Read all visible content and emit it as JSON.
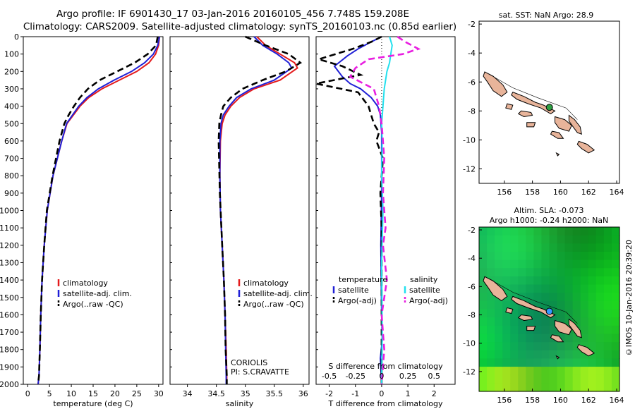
{
  "header": {
    "title_line1": "Argo profile: IF 6901430_17 03-Jan-2016 20160105_456 7.748S 159.208E",
    "title_line2": "Climatology: CARS2009. Satellite-adjusted climatology: synTS_20160103.nc (0.85d earlier)"
  },
  "watermark": "©IMOS 10-Jan-2016 20:39:20",
  "colors": {
    "climatology": "#e41a1c",
    "satellite": "#1f1fd6",
    "argo": "#000000",
    "sal_satellite": "#22e0ee",
    "sal_argo": "#e81ee0",
    "land": "#e8b49a"
  },
  "chart_data": [
    {
      "id": "temperature",
      "type": "line",
      "xlabel": "temperature (deg C)",
      "ylabel": "",
      "xlim": [
        -1,
        31
      ],
      "ylim": [
        2000,
        0
      ],
      "xticks": [
        0,
        5,
        10,
        15,
        20,
        25,
        30
      ],
      "yticks": [
        0,
        100,
        200,
        300,
        400,
        500,
        600,
        700,
        800,
        900,
        1000,
        1100,
        1200,
        1300,
        1400,
        1500,
        1600,
        1700,
        1800,
        1900,
        2000
      ],
      "legend": [
        "climatology",
        "satellite-adj. clim.",
        "Argo(..raw -QC)"
      ],
      "series": [
        {
          "name": "climatology",
          "color": "#e41a1c",
          "dash": false,
          "x": [
            30.2,
            30.0,
            29.3,
            27.8,
            25.0,
            21.0,
            17.0,
            14.0,
            12.0,
            10.5,
            9.0,
            7.8,
            6.8,
            5.8,
            4.5,
            3.8,
            3.3,
            3.0,
            2.8,
            2.6,
            2.4
          ],
          "y": [
            0,
            50,
            100,
            150,
            200,
            250,
            300,
            350,
            400,
            450,
            500,
            600,
            700,
            800,
            1000,
            1200,
            1400,
            1600,
            1800,
            1950,
            2000
          ]
        },
        {
          "name": "satellite-adj. clim.",
          "color": "#1f1fd6",
          "dash": false,
          "x": [
            30.2,
            29.8,
            28.8,
            26.8,
            23.8,
            19.8,
            16.2,
            13.6,
            11.7,
            10.3,
            8.9,
            7.8,
            6.8,
            5.8,
            4.5,
            3.8,
            3.3,
            3.0,
            2.8,
            2.6,
            2.4
          ],
          "y": [
            0,
            50,
            100,
            150,
            200,
            250,
            300,
            350,
            400,
            450,
            500,
            600,
            700,
            800,
            1000,
            1200,
            1400,
            1600,
            1800,
            1950,
            2000
          ]
        },
        {
          "name": "Argo(..raw -QC)",
          "color": "#000000",
          "dash": true,
          "x": [
            29.8,
            29.4,
            27.5,
            24.5,
            20.5,
            16.5,
            13.8,
            12.0,
            10.6,
            9.4,
            8.4,
            7.3,
            6.5,
            5.7,
            4.4,
            3.8,
            3.3,
            3.0,
            2.8,
            2.6,
            2.4
          ],
          "y": [
            0,
            50,
            100,
            150,
            200,
            250,
            300,
            350,
            400,
            450,
            500,
            600,
            700,
            800,
            1000,
            1200,
            1400,
            1600,
            1800,
            1950,
            2000
          ]
        }
      ]
    },
    {
      "id": "salinity",
      "type": "line",
      "xlabel": "salinity",
      "xlim": [
        33.7,
        36.1
      ],
      "ylim": [
        2000,
        0
      ],
      "xticks": [
        34,
        34.5,
        35,
        35.5,
        36
      ],
      "legend": [
        "climatology",
        "satellite-adj. clim.",
        "Argo(..raw -QC)"
      ],
      "annotation": [
        "CORIOLIS",
        "PI: S.CRAVATTE"
      ],
      "series": [
        {
          "name": "climatology",
          "color": "#e41a1c",
          "dash": false,
          "x": [
            35.2,
            35.35,
            35.6,
            35.85,
            35.9,
            35.6,
            35.15,
            34.9,
            34.75,
            34.65,
            34.6,
            34.57,
            34.56,
            34.57,
            34.6,
            34.63,
            34.65,
            34.67,
            34.68,
            34.68
          ],
          "y": [
            0,
            50,
            100,
            150,
            180,
            250,
            300,
            350,
            400,
            450,
            500,
            600,
            800,
            1000,
            1200,
            1400,
            1600,
            1800,
            1950,
            2000
          ]
        },
        {
          "name": "satellite-adj. clim.",
          "color": "#1f1fd6",
          "dash": false,
          "x": [
            35.15,
            35.3,
            35.55,
            35.75,
            35.8,
            35.5,
            35.1,
            34.85,
            34.72,
            34.62,
            34.58,
            34.56,
            34.56,
            34.57,
            34.6,
            34.63,
            34.65,
            34.66,
            34.67,
            34.67
          ],
          "y": [
            0,
            50,
            100,
            150,
            180,
            250,
            300,
            350,
            400,
            450,
            500,
            600,
            800,
            1000,
            1200,
            1400,
            1600,
            1800,
            1950,
            2000
          ]
        },
        {
          "name": "Argo(..raw -QC)",
          "color": "#000000",
          "dash": true,
          "x": [
            35.0,
            35.35,
            35.75,
            35.95,
            35.7,
            35.3,
            34.95,
            34.75,
            34.62,
            34.58,
            34.55,
            34.54,
            34.56,
            34.6,
            34.63,
            34.65,
            34.66,
            34.68,
            34.68
          ],
          "y": [
            0,
            50,
            100,
            150,
            200,
            250,
            300,
            350,
            400,
            450,
            500,
            600,
            900,
            1200,
            1400,
            1600,
            1800,
            1950,
            2000
          ]
        }
      ]
    },
    {
      "id": "differences",
      "type": "line",
      "xlabel": "T difference from climatology",
      "xlabel_top": "S difference from climatology",
      "xlim": [
        -2.5,
        2.8
      ],
      "ylim": [
        2000,
        0
      ],
      "xticks": [
        -2,
        -1,
        0,
        1,
        2
      ],
      "sticks": [
        -0.5,
        -0.25,
        0,
        0.25,
        0.5
      ],
      "legend_temperature": [
        "temperature",
        "satellite",
        "Argo(-adj)"
      ],
      "legend_salinity": [
        "salinity",
        "satellite",
        "Argo(-adj)"
      ],
      "series": [
        {
          "name": "satellite",
          "color": "#1f1fd6",
          "dash": false,
          "x": [
            0,
            -0.4,
            -0.9,
            -1.3,
            -1.8,
            -1.5,
            -1.2,
            -0.8,
            -0.4,
            -0.15,
            -0.05,
            0,
            0,
            0,
            -0.03,
            0,
            0.02,
            -0.05,
            0
          ],
          "y": [
            0,
            30,
            70,
            110,
            170,
            230,
            270,
            300,
            350,
            400,
            450,
            550,
            700,
            900,
            1200,
            1600,
            1750,
            1850,
            2000
          ]
        },
        {
          "name": "Argo(-adj)",
          "color": "#000000",
          "dash": true,
          "x": [
            0,
            -0.4,
            -1.1,
            -2.4,
            -1.5,
            -0.8,
            -2.5,
            -0.9,
            -0.5,
            -0.3,
            -0.1,
            -0.2,
            0.05,
            -0.05,
            0,
            0,
            0,
            0
          ],
          "y": [
            0,
            30,
            70,
            130,
            170,
            220,
            270,
            320,
            400,
            500,
            550,
            600,
            700,
            900,
            1100,
            1400,
            1700,
            2000
          ]
        },
        {
          "name": "salinity satellite",
          "color": "#22e0ee",
          "dash": false,
          "x": [
            0.3,
            0.4,
            0.35,
            0.3,
            0.2,
            0.1,
            0.05,
            0,
            0.02,
            0,
            0.05,
            0,
            0.02,
            0
          ],
          "y": [
            0,
            50,
            100,
            150,
            200,
            300,
            400,
            500,
            600,
            800,
            1000,
            1300,
            1700,
            2000
          ]
        },
        {
          "name": "salinity Argo(-adj)",
          "color": "#e81ee0",
          "dash": true,
          "x": [
            0.6,
            0.9,
            1.4,
            0.8,
            -0.5,
            -1.0,
            -1.2,
            -0.3,
            -0.1,
            0,
            0.1,
            0.05,
            0.15,
            0.05,
            0.2,
            0,
            0.1,
            0
          ],
          "y": [
            0,
            30,
            70,
            100,
            130,
            180,
            230,
            300,
            400,
            500,
            700,
            900,
            1100,
            1200,
            1400,
            1600,
            1800,
            2000
          ]
        }
      ]
    },
    {
      "id": "sst_map",
      "type": "scatter",
      "title": "sat. SST: NaN Argo: 28.9",
      "xlim": [
        154.2,
        164.2
      ],
      "ylim": [
        -13,
        -1.8
      ],
      "xticks": [
        156,
        158,
        160,
        162,
        164
      ],
      "yticks": [
        -2,
        -4,
        -6,
        -8,
        -10,
        -12
      ],
      "marker": {
        "lon": 159.21,
        "lat": -7.75,
        "color": "#2ea043"
      }
    },
    {
      "id": "sla_map",
      "type": "heatmap",
      "title_line1": "Altim. SLA: -0.073",
      "title_line2": "Argo h1000: -0.24 h2000: NaN",
      "xlim": [
        154.2,
        164.2
      ],
      "ylim": [
        -13.4,
        -1.8
      ],
      "xticks": [
        156,
        158,
        160,
        162,
        164
      ],
      "yticks": [
        -2,
        -4,
        -6,
        -8,
        -10,
        -12
      ],
      "marker": {
        "lon": 159.21,
        "lat": -7.75,
        "color": "#3399ff"
      }
    }
  ]
}
